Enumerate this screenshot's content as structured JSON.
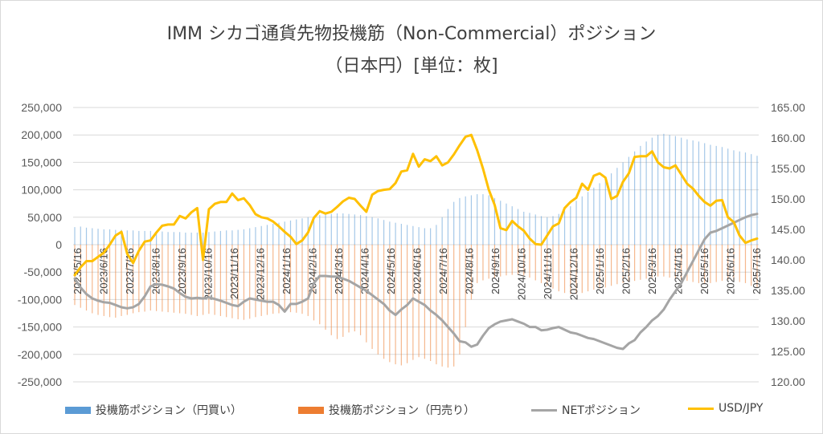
{
  "chart_data": {
    "type": "line",
    "title": "IMM シカゴ通貨先物投機筋（Non-Commercial）ポジション",
    "subtitle": "（日本円）[単位：枚]",
    "y_left": {
      "min": -250000,
      "max": 250000,
      "step": 50000,
      "ticks": [
        "250,000",
        "200,000",
        "150,000",
        "100,000",
        "50,000",
        "0",
        "-50,000",
        "-100,000",
        "-150,000",
        "-200,000",
        "-250,000"
      ]
    },
    "y_right": {
      "min": 120,
      "max": 165,
      "step": 5,
      "ticks": [
        "165.00",
        "160.00",
        "155.00",
        "150.00",
        "145.00",
        "140.00",
        "135.00",
        "130.00",
        "125.00",
        "120.00"
      ]
    },
    "x_ticks": [
      "2023/5/16",
      "2023/6/16",
      "2023/7/16",
      "2023/8/16",
      "2023/9/16",
      "2023/10/16",
      "2023/11/16",
      "2023/12/16",
      "2024/1/16",
      "2024/2/16",
      "2024/3/16",
      "2024/4/16",
      "2024/5/16",
      "2024/6/16",
      "2024/7/16",
      "2024/8/16",
      "2024/9/16",
      "2024/10/16",
      "2024/11/16",
      "2024/12/16",
      "2025/1/16",
      "2025/2/16",
      "2025/3/16",
      "2025/4/16",
      "2025/5/16",
      "2025/6/16",
      "2025/7/16"
    ],
    "weeks": 118,
    "legend": [
      "投機筋ポジション（円買い）",
      "投機筋ポジション（円売り）",
      "NETポジション",
      "USD/JPY"
    ],
    "colors": {
      "long": "#5b9bd5",
      "short": "#ed7d31",
      "net": "#a5a5a5",
      "usdjpy": "#ffc000",
      "grid": "#d9d9d9"
    },
    "series": [
      {
        "name": "投機筋ポジション（円買い）",
        "axis": "left",
        "kind": "bar",
        "values": [
          32000,
          33000,
          31000,
          30000,
          29000,
          28000,
          28000,
          27000,
          27000,
          26000,
          26000,
          25000,
          25000,
          25000,
          24000,
          24000,
          23000,
          23000,
          23000,
          22000,
          22000,
          22000,
          22000,
          23000,
          24000,
          25000,
          26000,
          26000,
          27000,
          28000,
          30000,
          32000,
          34000,
          36000,
          38000,
          40000,
          42000,
          44000,
          46000,
          48000,
          50000,
          52000,
          54000,
          55000,
          56000,
          57000,
          57000,
          56000,
          55000,
          54000,
          52000,
          50000,
          48000,
          45000,
          42000,
          40000,
          38000,
          36000,
          34000,
          32000,
          30000,
          30000,
          36000,
          50000,
          65000,
          78000,
          85000,
          88000,
          90000,
          92000,
          92000,
          90000,
          85000,
          80000,
          75000,
          70000,
          65000,
          60000,
          58000,
          55000,
          52000,
          50000,
          52000,
          56000,
          62000,
          70000,
          80000,
          88000,
          96000,
          104000,
          112000,
          120000,
          130000,
          140000,
          150000,
          160000,
          170000,
          180000,
          188000,
          195000,
          200000,
          202000,
          200000,
          198000,
          195000,
          192000,
          190000,
          188000,
          185000,
          182000,
          180000,
          178000,
          175000,
          172000,
          170000,
          168000,
          165000,
          162000
        ]
      },
      {
        "name": "投機筋ポジション（円売り）",
        "axis": "left",
        "kind": "bar",
        "values": [
          -110000,
          -115000,
          -120000,
          -125000,
          -128000,
          -130000,
          -132000,
          -133000,
          -130000,
          -128000,
          -125000,
          -123000,
          -122000,
          -120000,
          -121000,
          -122000,
          -123000,
          -124000,
          -125000,
          -126000,
          -128000,
          -130000,
          -128000,
          -126000,
          -128000,
          -130000,
          -132000,
          -134000,
          -136000,
          -137000,
          -135000,
          -132000,
          -130000,
          -128000,
          -126000,
          -125000,
          -124000,
          -123000,
          -124000,
          -126000,
          -130000,
          -138000,
          -145000,
          -155000,
          -165000,
          -172000,
          -168000,
          -160000,
          -158000,
          -165000,
          -178000,
          -190000,
          -200000,
          -208000,
          -214000,
          -218000,
          -220000,
          -216000,
          -210000,
          -205000,
          -208000,
          -212000,
          -218000,
          -222000,
          -224000,
          -222000,
          -200000,
          -150000,
          -100000,
          -70000,
          -65000,
          -62000,
          -60000,
          -58000,
          -56000,
          -55000,
          -54000,
          -56000,
          -60000,
          -65000,
          -70000,
          -75000,
          -80000,
          -85000,
          -88000,
          -90000,
          -90000,
          -88000,
          -85000,
          -82000,
          -80000,
          -78000,
          -75000,
          -72000,
          -70000,
          -68000,
          -66000,
          -64000,
          -62000,
          -60000,
          -58000,
          -58000,
          -60000,
          -62000,
          -64000,
          -66000,
          -68000,
          -70000,
          -70000,
          -70000,
          -68000,
          -66000,
          -64000,
          -65000,
          -68000,
          -70000,
          -75000,
          -78000
        ]
      },
      {
        "name": "NETポジション",
        "axis": "left",
        "kind": "line",
        "values": [
          -62000,
          -78000,
          -90000,
          -98000,
          -102000,
          -105000,
          -106000,
          -110000,
          -114000,
          -116000,
          -114000,
          -108000,
          -94000,
          -76000,
          -72000,
          -73000,
          -76000,
          -80000,
          -88000,
          -95000,
          -98000,
          -97000,
          -98000,
          -96000,
          -99000,
          -102000,
          -106000,
          -110000,
          -112000,
          -104000,
          -98000,
          -100000,
          -102000,
          -104000,
          -104000,
          -110000,
          -122000,
          -108000,
          -108000,
          -104000,
          -98000,
          -70000,
          -57000,
          -57000,
          -58000,
          -58000,
          -62000,
          -66000,
          -72000,
          -78000,
          -84000,
          -92000,
          -100000,
          -108000,
          -120000,
          -128000,
          -118000,
          -110000,
          -98000,
          -104000,
          -110000,
          -120000,
          -128000,
          -138000,
          -150000,
          -162000,
          -176000,
          -178000,
          -186000,
          -182000,
          -166000,
          -152000,
          -145000,
          -140000,
          -138000,
          -136000,
          -140000,
          -144000,
          -150000,
          -150000,
          -156000,
          -155000,
          -152000,
          -150000,
          -155000,
          -160000,
          -162000,
          -166000,
          -170000,
          -172000,
          -176000,
          -180000,
          -184000,
          -188000,
          -190000,
          -180000,
          -174000,
          -160000,
          -150000,
          -138000,
          -130000,
          -118000,
          -100000,
          -85000,
          -70000,
          -50000,
          -30000,
          -10000,
          10000,
          22000,
          25000,
          30000,
          35000,
          40000,
          45000,
          50000,
          54000,
          56000
        ]
      },
      {
        "name": "USD/JPY",
        "axis": "right",
        "kind": "line",
        "values": [
          137.5,
          138.8,
          139.8,
          139.8,
          140.5,
          141.2,
          142.5,
          144.0,
          144.6,
          141.0,
          139.5,
          141.5,
          143.0,
          143.2,
          144.5,
          145.6,
          145.8,
          145.8,
          147.2,
          146.8,
          147.8,
          148.5,
          140.0,
          148.3,
          149.2,
          149.5,
          149.5,
          150.9,
          149.8,
          150.1,
          149.0,
          147.5,
          147.0,
          146.8,
          146.3,
          145.5,
          144.6,
          143.8,
          142.6,
          143.2,
          144.5,
          146.9,
          148.0,
          147.6,
          147.9,
          148.7,
          149.6,
          150.2,
          150.0,
          148.9,
          147.9,
          150.7,
          151.3,
          151.5,
          151.6,
          152.6,
          154.5,
          154.7,
          157.4,
          155.3,
          156.5,
          156.2,
          157.0,
          155.5,
          156.0,
          157.3,
          158.8,
          160.2,
          160.5,
          158.0,
          155.0,
          151.5,
          149.0,
          145.2,
          144.9,
          146.4,
          145.5,
          144.8,
          143.5,
          142.6,
          142.5,
          144.0,
          145.5,
          146.0,
          148.5,
          149.5,
          150.2,
          152.5,
          151.5,
          153.8,
          154.2,
          153.5,
          150.0,
          150.5,
          152.8,
          154.2,
          156.9,
          157.0,
          157.0,
          157.8,
          156.0,
          155.2,
          155.0,
          155.5,
          154.0,
          152.5,
          151.7,
          150.5,
          149.5,
          148.9,
          149.7,
          149.8,
          147.0,
          146.2,
          144.0,
          142.8,
          143.2,
          143.5
        ]
      }
    ]
  }
}
